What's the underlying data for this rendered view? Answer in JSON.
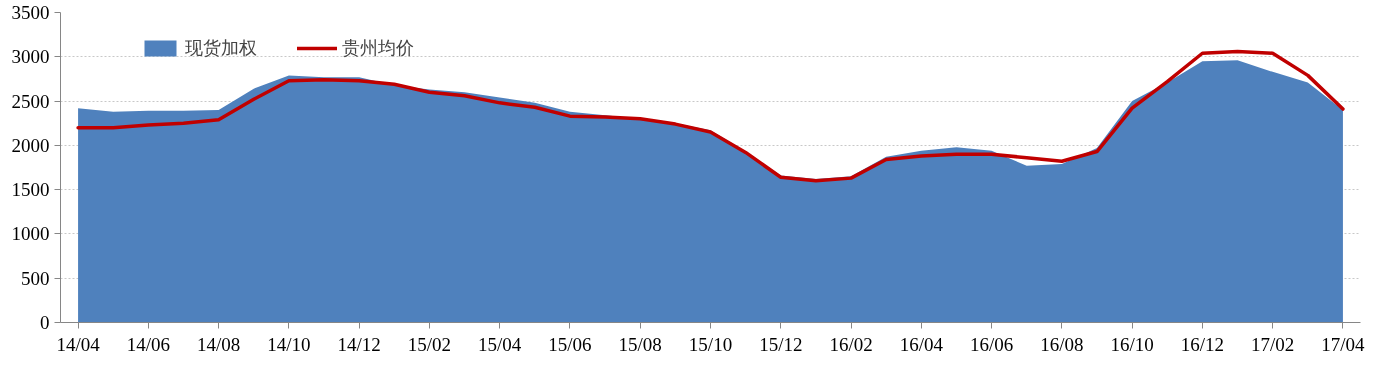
{
  "chart_data": {
    "type": "area",
    "categories": [
      "14/04",
      null,
      "14/06",
      null,
      "14/08",
      null,
      "14/10",
      null,
      "14/12",
      null,
      "15/02",
      null,
      "15/04",
      null,
      "15/06",
      null,
      "15/08",
      null,
      "15/10",
      null,
      "15/12",
      null,
      "16/02",
      null,
      "16/04",
      null,
      "16/06",
      null,
      "16/08",
      null,
      "16/10",
      null,
      "16/12",
      null,
      "17/02",
      null,
      "17/04"
    ],
    "series": [
      {
        "name": "现货加权",
        "color": "#4f81bd",
        "values": [
          2420,
          2380,
          2390,
          2390,
          2400,
          2640,
          2790,
          2770,
          2770,
          2680,
          2630,
          2600,
          2540,
          2480,
          2380,
          2340,
          2300,
          2250,
          2170,
          1930,
          1660,
          1620,
          1650,
          1870,
          1940,
          1980,
          1940,
          1770,
          1790,
          1970,
          2500,
          2710,
          2950,
          2960,
          2830,
          2710,
          2400
        ]
      },
      {
        "name": "贵州均价",
        "type": "line",
        "color": "#c00000",
        "values": [
          2200,
          2200,
          2230,
          2250,
          2290,
          2520,
          2730,
          2740,
          2730,
          2690,
          2600,
          2560,
          2480,
          2430,
          2330,
          2320,
          2300,
          2240,
          2150,
          1920,
          1640,
          1600,
          1630,
          1840,
          1880,
          1900,
          1900,
          1860,
          1820,
          1930,
          2420,
          2720,
          3040,
          3060,
          3040,
          2790,
          2410
        ]
      }
    ],
    "ylim": [
      0,
      3500
    ],
    "yticks": [
      0,
      500,
      1000,
      1500,
      2000,
      2500,
      3000,
      3500
    ],
    "grid": "y",
    "legend": "top left",
    "line_style": "solid"
  }
}
